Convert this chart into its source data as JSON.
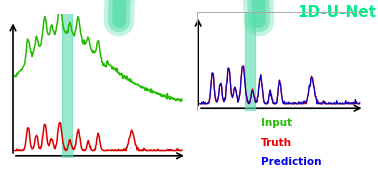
{
  "title": "1D-U-Net",
  "title_color": "#00ee88",
  "legend_labels": [
    "Input",
    "Truth",
    "Prediction"
  ],
  "legend_colors": [
    "#22bb00",
    "#ee0000",
    "#0000ee"
  ],
  "input_color": "#22bb00",
  "truth_color": "#dd0000",
  "prediction_color": "#0000cc",
  "unet_band_color": "#55ddaa",
  "background": "#ffffff",
  "figsize": [
    3.78,
    1.76
  ],
  "dpi": 100
}
